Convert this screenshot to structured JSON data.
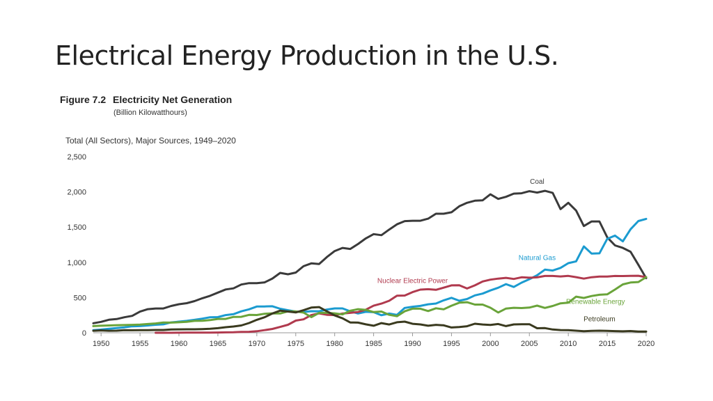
{
  "slide": {
    "title": "Electrical Energy Production in the U.S."
  },
  "figure": {
    "number": "Figure 7.2",
    "title": "Electricity Net Generation",
    "units": "(Billion Kilowatthours)",
    "subtitle": "Total (All Sectors), Major Sources, 1949–2020"
  },
  "chart_data": {
    "type": "line",
    "title": "Electricity Net Generation",
    "xlabel": "",
    "ylabel": "Billion Kilowatthours",
    "xlim": [
      1949,
      2020
    ],
    "ylim": [
      0,
      2500
    ],
    "yticks": [
      0,
      500,
      1000,
      1500,
      2000,
      2500
    ],
    "ytick_labels": [
      "0",
      "500",
      "1,000",
      "1,500",
      "2,000",
      "2,500"
    ],
    "xticks": [
      1950,
      1955,
      1960,
      1965,
      1970,
      1975,
      1980,
      1985,
      1990,
      1995,
      2000,
      2005,
      2010,
      2015,
      2020
    ],
    "xtick_labels": [
      "1950",
      "1955",
      "1960",
      "1965",
      "1970",
      "1975",
      "1980",
      "1985",
      "1990",
      "1995",
      "2000",
      "2005",
      "2010",
      "2015",
      "2020"
    ],
    "grid": false,
    "series": [
      {
        "name": "Coal",
        "color": "#3a3a3a",
        "x": [
          1949,
          1950,
          1951,
          1952,
          1953,
          1954,
          1955,
          1956,
          1957,
          1958,
          1959,
          1960,
          1961,
          1962,
          1963,
          1964,
          1965,
          1966,
          1967,
          1968,
          1969,
          1970,
          1971,
          1972,
          1973,
          1974,
          1975,
          1976,
          1977,
          1978,
          1979,
          1980,
          1981,
          1982,
          1983,
          1984,
          1985,
          1986,
          1987,
          1988,
          1989,
          1990,
          1991,
          1992,
          1993,
          1994,
          1995,
          1996,
          1997,
          1998,
          1999,
          2000,
          2001,
          2002,
          2003,
          2004,
          2005,
          2006,
          2007,
          2008,
          2009,
          2010,
          2011,
          2012,
          2013,
          2014,
          2015,
          2016,
          2017,
          2018,
          2019,
          2020
        ],
        "y": [
          135,
          155,
          185,
          195,
          220,
          240,
          300,
          335,
          345,
          345,
          380,
          405,
          420,
          450,
          490,
          525,
          570,
          615,
          630,
          685,
          705,
          705,
          715,
          770,
          850,
          830,
          855,
          945,
          985,
          975,
          1075,
          1160,
          1205,
          1190,
          1260,
          1340,
          1400,
          1385,
          1465,
          1540,
          1585,
          1590,
          1590,
          1620,
          1690,
          1690,
          1710,
          1795,
          1845,
          1875,
          1880,
          1965,
          1900,
          1930,
          1975,
          1980,
          2010,
          1990,
          2015,
          1985,
          1755,
          1845,
          1735,
          1515,
          1580,
          1580,
          1355,
          1240,
          1205,
          1150,
          965,
          775
        ]
      },
      {
        "name": "Natural Gas",
        "color": "#1b9bd0",
        "x": [
          1949,
          1950,
          1951,
          1952,
          1953,
          1954,
          1955,
          1956,
          1957,
          1958,
          1959,
          1960,
          1961,
          1962,
          1963,
          1964,
          1965,
          1966,
          1967,
          1968,
          1969,
          1970,
          1971,
          1972,
          1973,
          1974,
          1975,
          1976,
          1977,
          1978,
          1979,
          1980,
          1981,
          1982,
          1983,
          1984,
          1985,
          1986,
          1987,
          1988,
          1989,
          1990,
          1991,
          1992,
          1993,
          1994,
          1995,
          1996,
          1997,
          1998,
          1999,
          2000,
          2001,
          2002,
          2003,
          2004,
          2005,
          2006,
          2007,
          2008,
          2009,
          2010,
          2011,
          2012,
          2013,
          2014,
          2015,
          2016,
          2017,
          2018,
          2019,
          2020
        ],
        "y": [
          37,
          45,
          57,
          66,
          77,
          92,
          95,
          104,
          114,
          120,
          147,
          158,
          169,
          184,
          201,
          220,
          222,
          251,
          264,
          304,
          333,
          373,
          374,
          376,
          341,
          320,
          300,
          295,
          306,
          305,
          330,
          346,
          346,
          305,
          274,
          297,
          292,
          249,
          273,
          253,
          353,
          370,
          381,
          404,
          415,
          460,
          496,
          455,
          479,
          531,
          556,
          601,
          639,
          691,
          650,
          711,
          761,
          816,
          896,
          883,
          921,
          988,
          1014,
          1226,
          1124,
          1127,
          1333,
          1379,
          1297,
          1469,
          1586,
          1617
        ]
      },
      {
        "name": "Nuclear Electric Power",
        "color": "#b03a4e",
        "x": [
          1957,
          1958,
          1959,
          1960,
          1961,
          1962,
          1963,
          1964,
          1965,
          1966,
          1967,
          1968,
          1969,
          1970,
          1971,
          1972,
          1973,
          1974,
          1975,
          1976,
          1977,
          1978,
          1979,
          1980,
          1981,
          1982,
          1983,
          1984,
          1985,
          1986,
          1987,
          1988,
          1989,
          1990,
          1991,
          1992,
          1993,
          1994,
          1995,
          1996,
          1997,
          1998,
          1999,
          2000,
          2001,
          2002,
          2003,
          2004,
          2005,
          2006,
          2007,
          2008,
          2009,
          2010,
          2011,
          2012,
          2013,
          2014,
          2015,
          2016,
          2017,
          2018,
          2019,
          2020
        ],
        "y": [
          0,
          0,
          0,
          1,
          2,
          2,
          3,
          3,
          4,
          6,
          8,
          13,
          14,
          22,
          38,
          54,
          83,
          114,
          173,
          191,
          251,
          276,
          255,
          251,
          273,
          283,
          294,
          328,
          384,
          414,
          455,
          527,
          529,
          577,
          613,
          619,
          610,
          640,
          673,
          675,
          628,
          673,
          728,
          754,
          769,
          780,
          764,
          788,
          782,
          787,
          806,
          806,
          799,
          807,
          790,
          769,
          789,
          797,
          797,
          806,
          805,
          807,
          809,
          790
        ]
      },
      {
        "name": "Renewable Energy",
        "color": "#6aa43a",
        "x": [
          1949,
          1950,
          1951,
          1952,
          1953,
          1954,
          1955,
          1956,
          1957,
          1958,
          1959,
          1960,
          1961,
          1962,
          1963,
          1964,
          1965,
          1966,
          1967,
          1968,
          1969,
          1970,
          1971,
          1972,
          1973,
          1974,
          1975,
          1976,
          1977,
          1978,
          1979,
          1980,
          1981,
          1982,
          1983,
          1984,
          1985,
          1986,
          1987,
          1988,
          1989,
          1990,
          1991,
          1992,
          1993,
          1994,
          1995,
          1996,
          1997,
          1998,
          1999,
          2000,
          2001,
          2002,
          2003,
          2004,
          2005,
          2006,
          2007,
          2008,
          2009,
          2010,
          2011,
          2012,
          2013,
          2014,
          2015,
          2016,
          2017,
          2018,
          2019,
          2020
        ],
        "y": [
          95,
          100,
          104,
          108,
          110,
          113,
          116,
          125,
          132,
          146,
          144,
          149,
          156,
          169,
          170,
          180,
          197,
          197,
          225,
          226,
          254,
          252,
          270,
          276,
          274,
          304,
          303,
          287,
          222,
          283,
          283,
          276,
          261,
          312,
          335,
          325,
          293,
          301,
          255,
          235,
          305,
          342,
          342,
          308,
          348,
          333,
          384,
          427,
          434,
          400,
          400,
          356,
          288,
          344,
          355,
          351,
          358,
          385,
          353,
          380,
          418,
          427,
          513,
          494,
          522,
          540,
          545,
          614,
          687,
          713,
          720,
          790
        ]
      },
      {
        "name": "Petroleum",
        "color": "#3a3a1f",
        "x": [
          1949,
          1950,
          1951,
          1952,
          1953,
          1954,
          1955,
          1956,
          1957,
          1958,
          1959,
          1960,
          1961,
          1962,
          1963,
          1964,
          1965,
          1966,
          1967,
          1968,
          1969,
          1970,
          1971,
          1972,
          1973,
          1974,
          1975,
          1976,
          1977,
          1978,
          1979,
          1980,
          1981,
          1982,
          1983,
          1984,
          1985,
          1986,
          1987,
          1988,
          1989,
          1990,
          1991,
          1992,
          1993,
          1994,
          1995,
          1996,
          1997,
          1998,
          1999,
          2000,
          2001,
          2002,
          2003,
          2004,
          2005,
          2006,
          2007,
          2008,
          2009,
          2010,
          2011,
          2012,
          2013,
          2014,
          2015,
          2016,
          2017,
          2018,
          2019,
          2020
        ],
        "y": [
          29,
          34,
          29,
          30,
          37,
          36,
          37,
          37,
          40,
          40,
          47,
          48,
          49,
          49,
          52,
          57,
          65,
          79,
          89,
          104,
          138,
          184,
          220,
          274,
          314,
          301,
          289,
          320,
          358,
          365,
          304,
          246,
          206,
          146,
          144,
          120,
          100,
          137,
          118,
          149,
          158,
          127,
          119,
          100,
          113,
          106,
          75,
          82,
          93,
          128,
          118,
          111,
          125,
          95,
          119,
          121,
          122,
          64,
          66,
          46,
          39,
          37,
          30,
          23,
          27,
          30,
          28,
          24,
          21,
          25,
          18,
          17
        ]
      }
    ],
    "annotations": [
      {
        "text": "Coal",
        "series": "Coal",
        "x": 2006,
        "y": 2115,
        "color": "#3a3a3a"
      },
      {
        "text": "Natural Gas",
        "series": "Natural Gas",
        "x": 2006,
        "y": 1035,
        "color": "#1b9bd0"
      },
      {
        "text": "Nuclear Electric Power",
        "series": "Nuclear Electric Power",
        "x": 1990,
        "y": 705,
        "color": "#b03a4e"
      },
      {
        "text": "Renewable Energy",
        "series": "Renewable Energy",
        "x": 2013.5,
        "y": 410,
        "color": "#6aa43a"
      },
      {
        "text": "Petroleum",
        "series": "Petroleum",
        "x": 2014,
        "y": 165,
        "color": "#3a3a1f"
      }
    ]
  }
}
